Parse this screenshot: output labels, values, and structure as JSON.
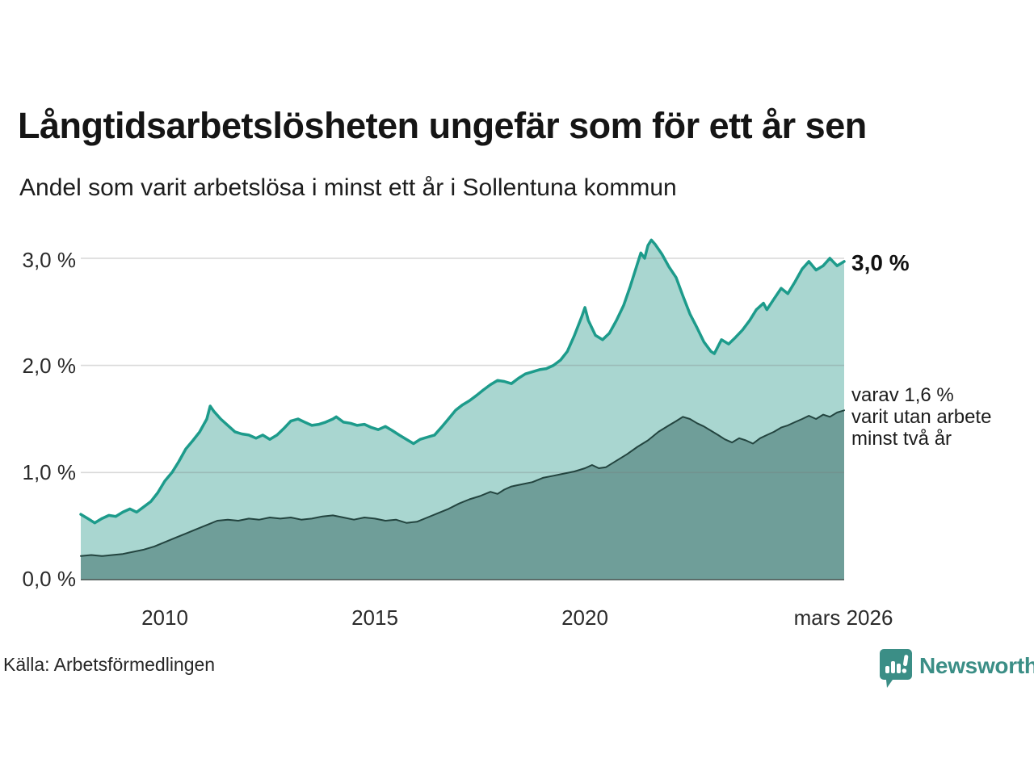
{
  "title": "Långtidsarbetslösheten ungefär som för ett år sen",
  "subtitle": "Andel som varit arbetslösa i minst ett år i Sollentuna kommun",
  "source": "Källa: Arbetsförmedlingen",
  "brand": {
    "name": "Newsworthy",
    "color": "#3b8e86",
    "icon": "bar-chart-speech-bubble-icon"
  },
  "annotations": {
    "end_label_total": "3,0 %",
    "end_label_two_years_line1": "varav 1,6 %",
    "end_label_two_years_line2": "varit utan arbete",
    "end_label_two_years_line3": "minst två år"
  },
  "colors": {
    "total_line": "#1d9b8b",
    "total_fill": "#a9d6d0",
    "two_year_line": "#23443f",
    "two_year_fill": "#6f9e99",
    "gridline": "rgba(120,120,120,0.28)",
    "baseline": "#47514f",
    "text": "#1d1d1d"
  },
  "chart_data": {
    "type": "area",
    "title": "Långtidsarbetslösheten ungefär som för ett år sen",
    "subtitle": "Andel som varit arbetslösa i minst ett år i Sollentuna kommun",
    "xlabel": "",
    "ylabel": "",
    "grid": true,
    "x_range": [
      2008.0,
      2026.17
    ],
    "ylim": [
      0,
      3.25
    ],
    "y_axis": {
      "tick_values": [
        0,
        1,
        2,
        3
      ],
      "tick_labels": [
        "0,0 %",
        "1,0 %",
        "2,0 %",
        "3,0 %"
      ]
    },
    "x_axis": {
      "tick_values": [
        2010,
        2015,
        2020,
        2026.17
      ],
      "tick_labels": [
        "2010",
        "2015",
        "2020",
        "mars 2026"
      ]
    },
    "series": [
      {
        "name": "Andel som varit arbetslösa i minst ett år",
        "end_value_label": "3,0 %",
        "line_color": "#1d9b8b",
        "fill_color": "#a9d6d0",
        "line_width": 3.5,
        "points": [
          [
            2008.0,
            0.61
          ],
          [
            2008.17,
            0.57
          ],
          [
            2008.33,
            0.53
          ],
          [
            2008.5,
            0.57
          ],
          [
            2008.67,
            0.6
          ],
          [
            2008.83,
            0.59
          ],
          [
            2009.0,
            0.63
          ],
          [
            2009.17,
            0.66
          ],
          [
            2009.33,
            0.63
          ],
          [
            2009.5,
            0.68
          ],
          [
            2009.67,
            0.73
          ],
          [
            2009.83,
            0.81
          ],
          [
            2010.0,
            0.92
          ],
          [
            2010.17,
            1.0
          ],
          [
            2010.33,
            1.1
          ],
          [
            2010.5,
            1.22
          ],
          [
            2010.67,
            1.3
          ],
          [
            2010.83,
            1.38
          ],
          [
            2011.0,
            1.5
          ],
          [
            2011.08,
            1.62
          ],
          [
            2011.17,
            1.57
          ],
          [
            2011.33,
            1.5
          ],
          [
            2011.5,
            1.44
          ],
          [
            2011.67,
            1.38
          ],
          [
            2011.83,
            1.36
          ],
          [
            2012.0,
            1.35
          ],
          [
            2012.17,
            1.32
          ],
          [
            2012.33,
            1.35
          ],
          [
            2012.5,
            1.31
          ],
          [
            2012.67,
            1.35
          ],
          [
            2012.83,
            1.41
          ],
          [
            2013.0,
            1.48
          ],
          [
            2013.17,
            1.5
          ],
          [
            2013.33,
            1.47
          ],
          [
            2013.5,
            1.44
          ],
          [
            2013.67,
            1.45
          ],
          [
            2013.83,
            1.47
          ],
          [
            2014.0,
            1.5
          ],
          [
            2014.08,
            1.52
          ],
          [
            2014.25,
            1.47
          ],
          [
            2014.42,
            1.46
          ],
          [
            2014.58,
            1.44
          ],
          [
            2014.75,
            1.45
          ],
          [
            2014.92,
            1.42
          ],
          [
            2015.08,
            1.4
          ],
          [
            2015.25,
            1.43
          ],
          [
            2015.42,
            1.39
          ],
          [
            2015.58,
            1.35
          ],
          [
            2015.75,
            1.31
          ],
          [
            2015.92,
            1.27
          ],
          [
            2016.08,
            1.31
          ],
          [
            2016.25,
            1.33
          ],
          [
            2016.42,
            1.35
          ],
          [
            2016.58,
            1.42
          ],
          [
            2016.75,
            1.5
          ],
          [
            2016.92,
            1.58
          ],
          [
            2017.08,
            1.63
          ],
          [
            2017.25,
            1.67
          ],
          [
            2017.42,
            1.72
          ],
          [
            2017.58,
            1.77
          ],
          [
            2017.75,
            1.82
          ],
          [
            2017.92,
            1.86
          ],
          [
            2018.08,
            1.85
          ],
          [
            2018.25,
            1.83
          ],
          [
            2018.42,
            1.88
          ],
          [
            2018.58,
            1.92
          ],
          [
            2018.75,
            1.94
          ],
          [
            2018.92,
            1.96
          ],
          [
            2019.08,
            1.97
          ],
          [
            2019.25,
            2.0
          ],
          [
            2019.42,
            2.05
          ],
          [
            2019.58,
            2.13
          ],
          [
            2019.75,
            2.28
          ],
          [
            2019.92,
            2.45
          ],
          [
            2020.0,
            2.54
          ],
          [
            2020.08,
            2.42
          ],
          [
            2020.25,
            2.28
          ],
          [
            2020.42,
            2.24
          ],
          [
            2020.58,
            2.3
          ],
          [
            2020.75,
            2.42
          ],
          [
            2020.92,
            2.56
          ],
          [
            2021.08,
            2.74
          ],
          [
            2021.25,
            2.95
          ],
          [
            2021.33,
            3.05
          ],
          [
            2021.42,
            3.0
          ],
          [
            2021.5,
            3.12
          ],
          [
            2021.58,
            3.17
          ],
          [
            2021.67,
            3.13
          ],
          [
            2021.83,
            3.04
          ],
          [
            2022.0,
            2.92
          ],
          [
            2022.17,
            2.82
          ],
          [
            2022.33,
            2.65
          ],
          [
            2022.5,
            2.48
          ],
          [
            2022.67,
            2.35
          ],
          [
            2022.83,
            2.22
          ],
          [
            2023.0,
            2.13
          ],
          [
            2023.08,
            2.11
          ],
          [
            2023.25,
            2.24
          ],
          [
            2023.42,
            2.2
          ],
          [
            2023.58,
            2.26
          ],
          [
            2023.75,
            2.33
          ],
          [
            2023.92,
            2.42
          ],
          [
            2024.08,
            2.52
          ],
          [
            2024.25,
            2.58
          ],
          [
            2024.33,
            2.52
          ],
          [
            2024.5,
            2.62
          ],
          [
            2024.67,
            2.72
          ],
          [
            2024.83,
            2.67
          ],
          [
            2025.0,
            2.78
          ],
          [
            2025.17,
            2.9
          ],
          [
            2025.33,
            2.97
          ],
          [
            2025.5,
            2.89
          ],
          [
            2025.67,
            2.93
          ],
          [
            2025.83,
            3.0
          ],
          [
            2026.0,
            2.93
          ],
          [
            2026.17,
            2.97
          ]
        ]
      },
      {
        "name": "varav utan arbete minst två år",
        "end_value_label": "varav 1,6 % varit utan arbete minst två år",
        "line_color": "#23443f",
        "fill_color": "#6f9e99",
        "line_width": 2,
        "points": [
          [
            2008.0,
            0.22
          ],
          [
            2008.25,
            0.23
          ],
          [
            2008.5,
            0.22
          ],
          [
            2008.75,
            0.23
          ],
          [
            2009.0,
            0.24
          ],
          [
            2009.25,
            0.26
          ],
          [
            2009.5,
            0.28
          ],
          [
            2009.75,
            0.31
          ],
          [
            2010.0,
            0.35
          ],
          [
            2010.25,
            0.39
          ],
          [
            2010.5,
            0.43
          ],
          [
            2010.75,
            0.47
          ],
          [
            2011.0,
            0.51
          ],
          [
            2011.25,
            0.55
          ],
          [
            2011.5,
            0.56
          ],
          [
            2011.75,
            0.55
          ],
          [
            2012.0,
            0.57
          ],
          [
            2012.25,
            0.56
          ],
          [
            2012.5,
            0.58
          ],
          [
            2012.75,
            0.57
          ],
          [
            2013.0,
            0.58
          ],
          [
            2013.25,
            0.56
          ],
          [
            2013.5,
            0.57
          ],
          [
            2013.75,
            0.59
          ],
          [
            2014.0,
            0.6
          ],
          [
            2014.25,
            0.58
          ],
          [
            2014.5,
            0.56
          ],
          [
            2014.75,
            0.58
          ],
          [
            2015.0,
            0.57
          ],
          [
            2015.25,
            0.55
          ],
          [
            2015.5,
            0.56
          ],
          [
            2015.75,
            0.53
          ],
          [
            2016.0,
            0.54
          ],
          [
            2016.25,
            0.58
          ],
          [
            2016.5,
            0.62
          ],
          [
            2016.75,
            0.66
          ],
          [
            2017.0,
            0.71
          ],
          [
            2017.25,
            0.75
          ],
          [
            2017.5,
            0.78
          ],
          [
            2017.75,
            0.82
          ],
          [
            2017.92,
            0.8
          ],
          [
            2018.08,
            0.84
          ],
          [
            2018.25,
            0.87
          ],
          [
            2018.5,
            0.89
          ],
          [
            2018.75,
            0.91
          ],
          [
            2019.0,
            0.95
          ],
          [
            2019.25,
            0.97
          ],
          [
            2019.5,
            0.99
          ],
          [
            2019.75,
            1.01
          ],
          [
            2020.0,
            1.04
          ],
          [
            2020.17,
            1.07
          ],
          [
            2020.33,
            1.04
          ],
          [
            2020.5,
            1.05
          ],
          [
            2020.75,
            1.11
          ],
          [
            2021.0,
            1.17
          ],
          [
            2021.25,
            1.24
          ],
          [
            2021.5,
            1.3
          ],
          [
            2021.75,
            1.38
          ],
          [
            2022.0,
            1.44
          ],
          [
            2022.17,
            1.48
          ],
          [
            2022.33,
            1.52
          ],
          [
            2022.5,
            1.5
          ],
          [
            2022.67,
            1.46
          ],
          [
            2022.83,
            1.43
          ],
          [
            2023.0,
            1.39
          ],
          [
            2023.17,
            1.35
          ],
          [
            2023.33,
            1.31
          ],
          [
            2023.5,
            1.28
          ],
          [
            2023.67,
            1.32
          ],
          [
            2023.83,
            1.3
          ],
          [
            2024.0,
            1.27
          ],
          [
            2024.17,
            1.32
          ],
          [
            2024.33,
            1.35
          ],
          [
            2024.5,
            1.38
          ],
          [
            2024.67,
            1.42
          ],
          [
            2024.83,
            1.44
          ],
          [
            2025.0,
            1.47
          ],
          [
            2025.17,
            1.5
          ],
          [
            2025.33,
            1.53
          ],
          [
            2025.5,
            1.5
          ],
          [
            2025.67,
            1.54
          ],
          [
            2025.83,
            1.52
          ],
          [
            2026.0,
            1.56
          ],
          [
            2026.17,
            1.58
          ]
        ]
      }
    ]
  }
}
